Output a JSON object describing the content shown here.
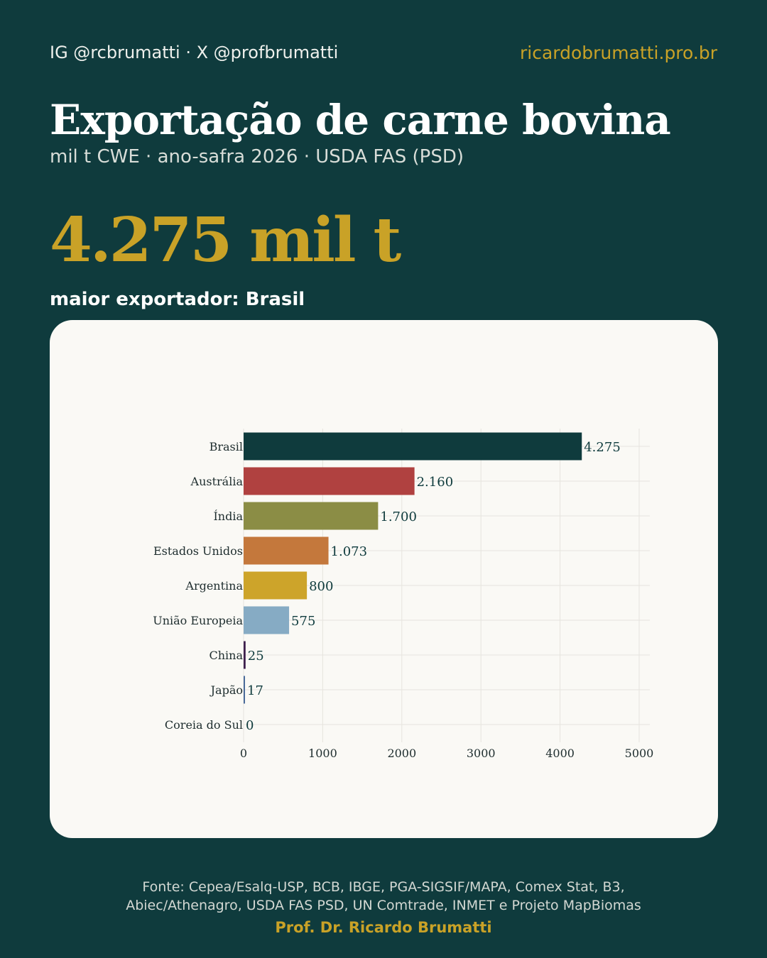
{
  "header": {
    "handles": "IG @rcbrumatti · X @profbrumatti",
    "site": "ricardobrumatti.pro.br"
  },
  "headline": {
    "title": "Exportação de carne bovina",
    "subtitle": "mil t CWE · ano-safra 2026 · USDA FAS (PSD)",
    "big_value": "4.275 mil t",
    "lead": "maior exportador: Brasil"
  },
  "chart_data": {
    "type": "bar",
    "orientation": "horizontal",
    "categories": [
      "Brasil",
      "Austrália",
      "Índia",
      "Estados Unidos",
      "Argentina",
      "União Europeia",
      "China",
      "Japão",
      "Coreia do Sul"
    ],
    "values": [
      4275,
      2160,
      1700,
      1073,
      800,
      575,
      25,
      17,
      0
    ],
    "value_labels": [
      "4.275",
      "2.160",
      "1.700",
      "1.073",
      "800",
      "575",
      "25",
      "17",
      "0"
    ],
    "colors": [
      "#0f3b3d",
      "#b04140",
      "#8b8d45",
      "#c4783c",
      "#cda42a",
      "#86abc4",
      "#3d1f4d",
      "#4a6b9a",
      "#7a3fb0"
    ],
    "xlim": [
      0,
      5000
    ],
    "xticks": [
      0,
      1000,
      2000,
      3000,
      4000,
      5000
    ],
    "xtick_labels": [
      "0",
      "1000",
      "2000",
      "3000",
      "4000",
      "5000"
    ],
    "grid": true
  },
  "footer": {
    "source_line1": "Fonte: Cepea/Esalq-USP, BCB, IBGE, PGA-SIGSIF/MAPA, Comex Stat, B3,",
    "source_line2": "Abiec/Athenagro, USDA FAS PSD, UN Comtrade, INMET e Projeto MapBiomas",
    "author": "Prof. Dr. Ricardo Brumatti"
  }
}
